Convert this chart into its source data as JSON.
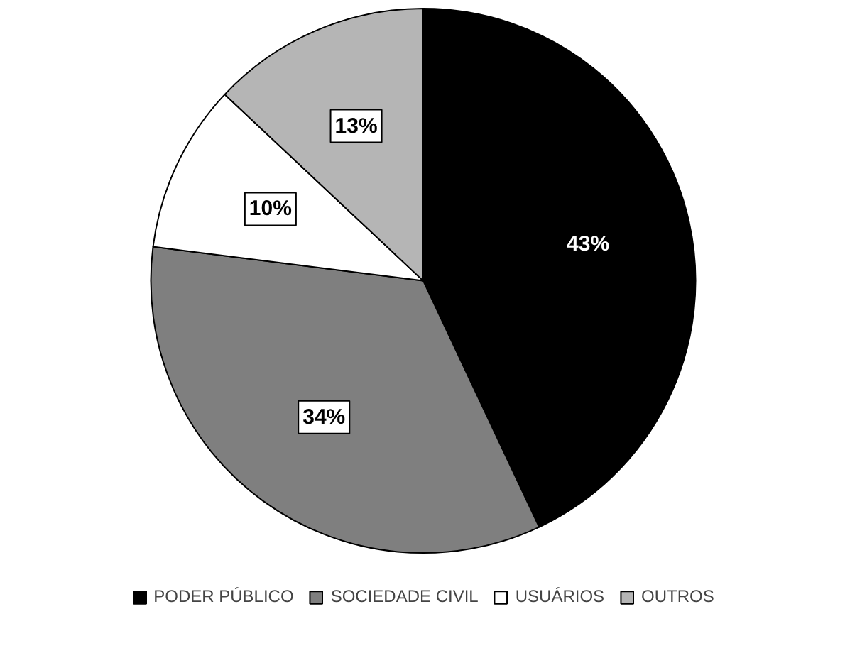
{
  "chart_data": {
    "type": "pie",
    "categories": [
      "PODER PÚBLICO",
      "SOCIEDADE CIVIL",
      "USUÁRIOS",
      "OUTROS"
    ],
    "values": [
      43,
      34,
      10,
      13
    ],
    "colors": [
      "#000000",
      "#7f7f7f",
      "#ffffff",
      "#b5b5b5"
    ],
    "value_labels": [
      "43%",
      "34%",
      "10%",
      "13%"
    ],
    "legend": "bottom"
  }
}
